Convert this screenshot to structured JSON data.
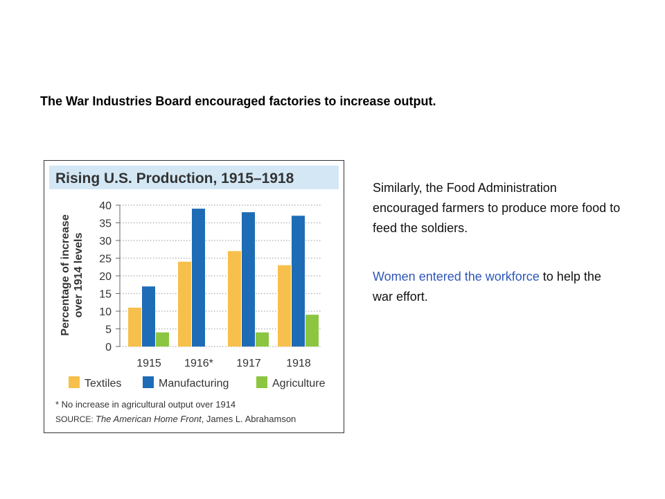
{
  "heading": "The War Industries Board encouraged factories to increase output.",
  "paragraph1": "Similarly, the Food Administration encouraged farmers to produce more food to feed the soldiers.",
  "paragraph2": {
    "highlight": "Women entered the workforce",
    "rest": " to help the war effort."
  },
  "colors": {
    "title_band": "#d3e7f5",
    "textiles": "#f7bf4b",
    "manufacturing": "#1e6cb5",
    "agriculture": "#8cc641",
    "highlight_text": "#2e56b8"
  },
  "chart_data": {
    "type": "bar",
    "title": "Rising U.S. Production, 1915–1918",
    "ylabel": "Percentage of increase over 1914 levels",
    "ylim": [
      0,
      40
    ],
    "yticks": [
      0,
      5,
      10,
      15,
      20,
      25,
      30,
      35,
      40
    ],
    "grid": true,
    "legend_position": "bottom",
    "categories": [
      "1915",
      "1916*",
      "1917",
      "1918"
    ],
    "series": [
      {
        "name": "Textiles",
        "values": [
          11,
          24,
          27,
          23
        ]
      },
      {
        "name": "Manufacturing",
        "values": [
          17,
          39,
          38,
          37
        ]
      },
      {
        "name": "Agriculture",
        "values": [
          4,
          0,
          4,
          9
        ]
      }
    ],
    "footnote": "* No increase in agricultural output over 1914",
    "source_label": "SOURCE:",
    "source_title": "The American Home Front",
    "source_author": ", James L. Abrahamson"
  }
}
